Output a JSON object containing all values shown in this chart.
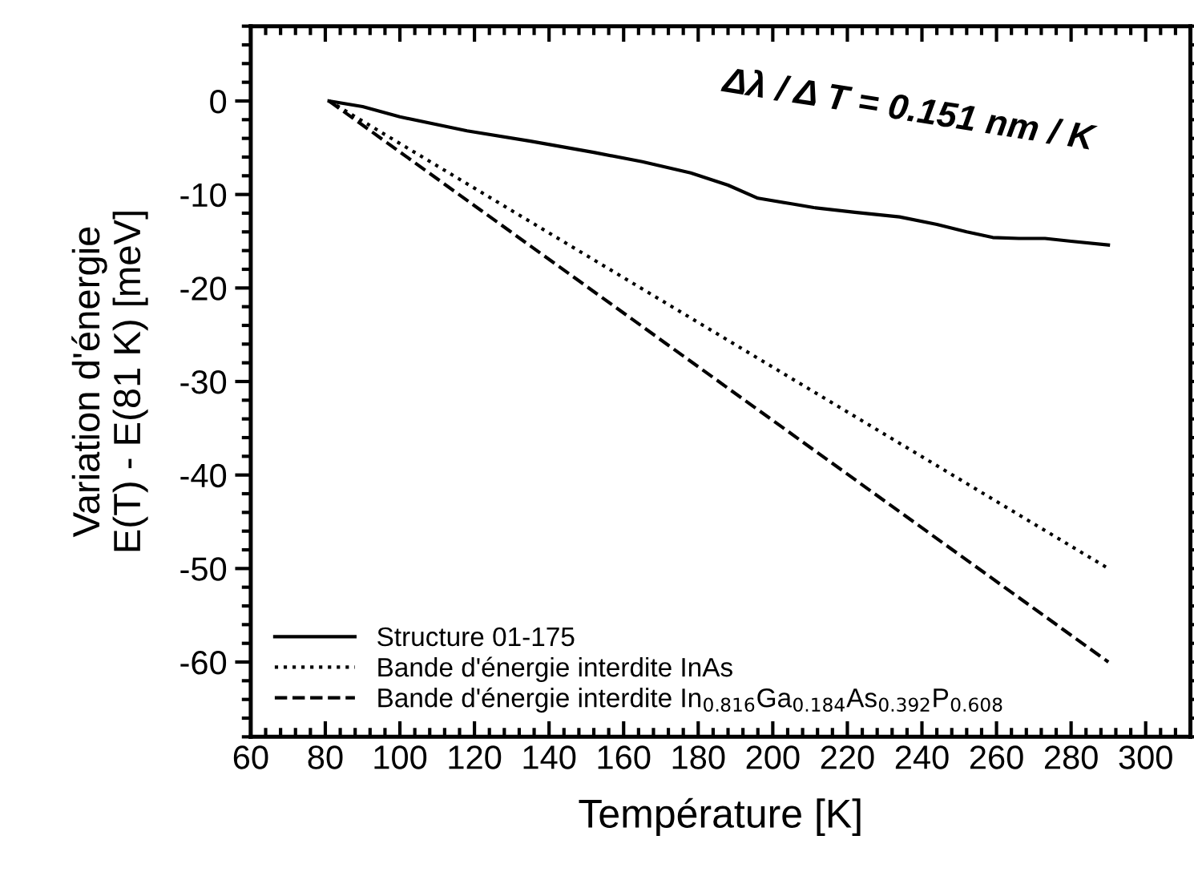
{
  "chart_data": {
    "type": "line",
    "xlabel": "Température [K]",
    "ylabel": "Variation d'énergie\nE(T) - E(81 K) [meV]",
    "annotations": [
      "Δλ / Δ T = 0.151 nm / K"
    ],
    "series": [
      {
        "name": "Structure 01-175",
        "color": "#000000",
        "line_style": "solid",
        "x": [
          81,
          90,
          100,
          118,
          135,
          152,
          165,
          178,
          188,
          196,
          205,
          211,
          222,
          234,
          244,
          252,
          259,
          266,
          273,
          280,
          290
        ],
        "values": [
          0,
          -0.6,
          -1.7,
          -3.2,
          -4.3,
          -5.5,
          -6.5,
          -7.7,
          -9.0,
          -10.4,
          -11.0,
          -11.4,
          -11.9,
          -12.4,
          -13.2,
          -14.0,
          -14.6,
          -14.7,
          -14.7,
          -15.0,
          -15.4
        ]
      },
      {
        "name": "Bande d'énergie interdite InAs",
        "color": "#000000",
        "line_style": "dotted",
        "x": [
          81,
          290
        ],
        "values": [
          0,
          -50
        ]
      },
      {
        "name": "Bande d'énergie interdite In$_{0.816}$Ga$_{0.184}$As$_{0.392}$P$_{0.608}$",
        "color": "#000000",
        "line_style": "dashed",
        "x": [
          81,
          290
        ],
        "values": [
          0,
          -60
        ]
      }
    ],
    "xlim": [
      60,
      312
    ],
    "xticks": [
      60,
      80,
      100,
      120,
      140,
      160,
      180,
      200,
      220,
      240,
      260,
      280,
      300
    ],
    "ylim": [
      -68,
      8
    ],
    "yticks": [
      0,
      -10,
      -20,
      -30,
      -40,
      -50,
      -60
    ],
    "legend": "bottom left",
    "grid": false
  }
}
